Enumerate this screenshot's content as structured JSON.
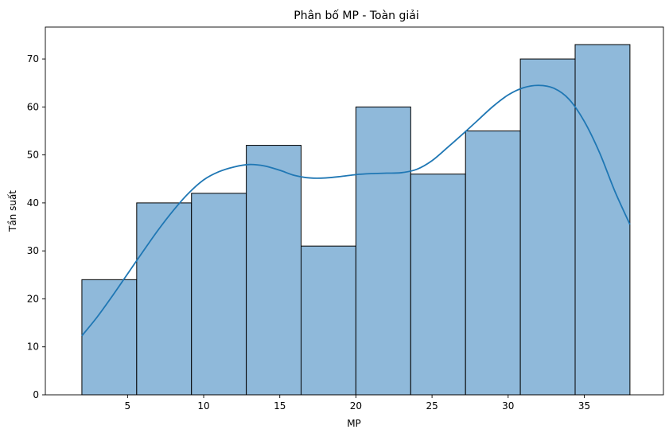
{
  "chart_data": {
    "type": "bar",
    "title": "Phân bố MP - Toàn giải",
    "xlabel": "MP",
    "ylabel": "Tần suất",
    "bin_edges": [
      2,
      5.6,
      9.2,
      12.8,
      16.4,
      20,
      23.6,
      27.2,
      30.8,
      34.4,
      38
    ],
    "values": [
      24,
      40,
      42,
      52,
      31,
      60,
      46,
      55,
      70,
      73
    ],
    "xlim": [
      -0.4,
      40.2
    ],
    "ylim": [
      0,
      76.65
    ],
    "xticks": [
      5,
      10,
      15,
      20,
      25,
      30,
      35
    ],
    "yticks": [
      0,
      10,
      20,
      30,
      40,
      50,
      60,
      70
    ],
    "kde": {
      "x": [
        2,
        3,
        4,
        5,
        6,
        7,
        8,
        9,
        10,
        11,
        12,
        13,
        14,
        15,
        16,
        17,
        18,
        19,
        20,
        21,
        22,
        23,
        24,
        25,
        26,
        27,
        28,
        29,
        30,
        31,
        32,
        33,
        34,
        35,
        36,
        37,
        38
      ],
      "y": [
        12.3,
        16.2,
        20.6,
        25.2,
        29.8,
        34.3,
        38.4,
        42.0,
        44.8,
        46.5,
        47.5,
        48.0,
        47.7,
        46.8,
        45.7,
        45.2,
        45.2,
        45.5,
        45.9,
        46.1,
        46.2,
        46.3,
        47.0,
        48.8,
        51.5,
        54.3,
        57.2,
        60.1,
        62.5,
        64.0,
        64.5,
        63.9,
        61.6,
        57.0,
        50.5,
        42.5,
        35.5
      ]
    },
    "grid": false,
    "legend": "none",
    "bar_color": "#8fb9da",
    "bar_edge_color": "#000000",
    "kde_color": "#1f77b4"
  }
}
